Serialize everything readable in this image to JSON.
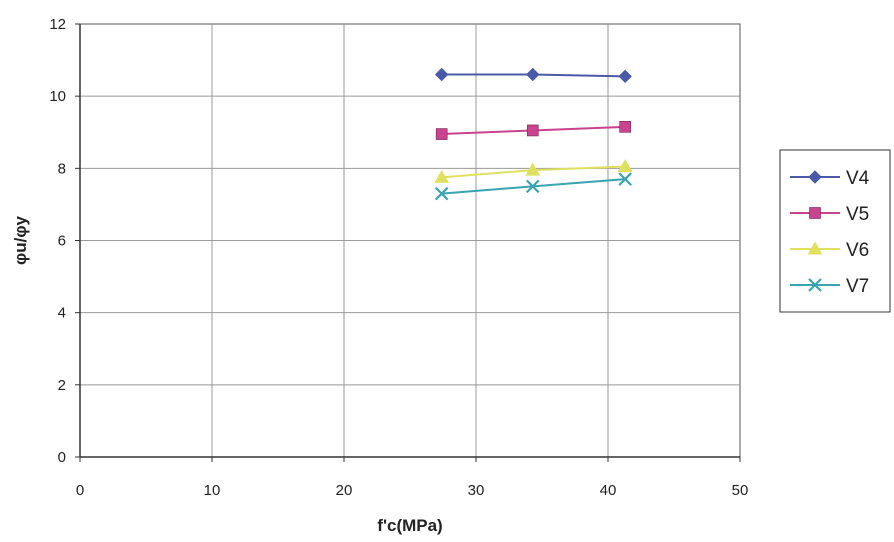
{
  "chart_data": {
    "type": "line",
    "title": "",
    "xlabel": "f'c(MPa)",
    "ylabel": "φu/φy",
    "xlim": [
      0,
      50
    ],
    "ylim": [
      0,
      12
    ],
    "xticks": [
      0,
      10,
      20,
      30,
      40,
      50
    ],
    "yticks": [
      0,
      2,
      4,
      6,
      8,
      10,
      12
    ],
    "grid": true,
    "legend_position": "right",
    "x": [
      27.4,
      34.3,
      41.3
    ],
    "series": [
      {
        "name": "V4",
        "values": [
          10.6,
          10.6,
          10.55
        ],
        "color": "#4a5aa8",
        "marker": "diamond"
      },
      {
        "name": "V5",
        "values": [
          8.95,
          9.05,
          9.15
        ],
        "color": "#c8448e",
        "marker": "square"
      },
      {
        "name": "V6",
        "values": [
          7.75,
          7.95,
          8.05
        ],
        "color": "#e0e060",
        "marker": "triangle"
      },
      {
        "name": "V7",
        "values": [
          7.3,
          7.5,
          7.7
        ],
        "color": "#3aa3b0",
        "marker": "x"
      }
    ]
  }
}
